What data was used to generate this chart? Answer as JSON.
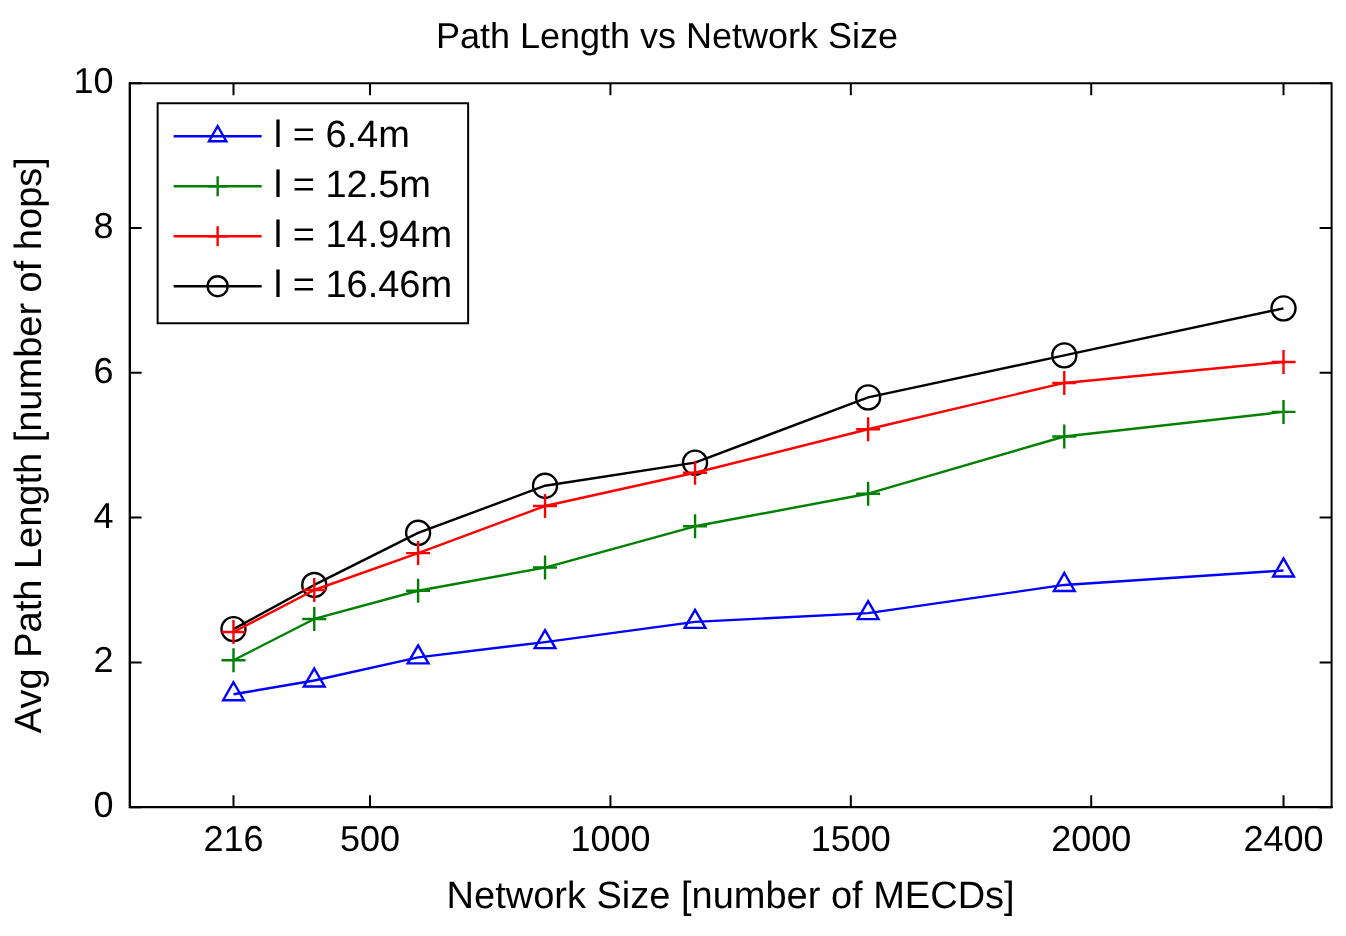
{
  "chart_data": {
    "type": "line",
    "title": "Path Length vs Network Size",
    "xlabel": "Network Size [number of MECDs]",
    "ylabel": "Avg Path Length [number of hops]",
    "x": [
      216,
      384,
      600,
      864,
      1176,
      1536,
      1944,
      2400
    ],
    "series": [
      {
        "name": "l = 6.4m",
        "color": "#0000ff",
        "marker": "triangle",
        "values": [
          1.56,
          1.75,
          2.07,
          2.28,
          2.56,
          2.68,
          3.07,
          3.27
        ]
      },
      {
        "name": "l = 12.5m",
        "color": "#008000",
        "marker": "cross",
        "values": [
          2.03,
          2.6,
          2.99,
          3.31,
          3.88,
          4.33,
          5.12,
          5.46
        ]
      },
      {
        "name": "l = 14.94m",
        "color": "#ff0000",
        "marker": "cross",
        "values": [
          2.42,
          3.0,
          3.51,
          4.16,
          4.62,
          5.22,
          5.86,
          6.15
        ]
      },
      {
        "name": "l = 16.46m",
        "color": "#000000",
        "marker": "circle",
        "values": [
          2.46,
          3.07,
          3.79,
          4.44,
          4.76,
          5.66,
          6.24,
          6.89
        ]
      }
    ],
    "xlim": [
      0,
      2500
    ],
    "xticks": [
      216,
      500,
      1000,
      1500,
      2000,
      2400
    ],
    "ylim": [
      0,
      10
    ],
    "yticks": [
      0,
      2,
      4,
      6,
      8,
      10
    ],
    "legend": "top left",
    "line_style": "solid"
  }
}
